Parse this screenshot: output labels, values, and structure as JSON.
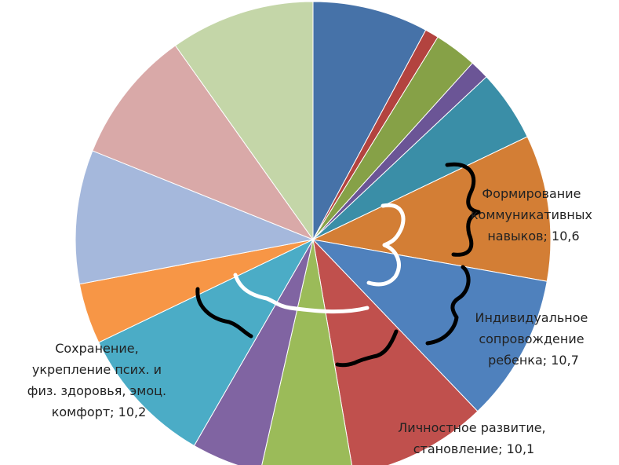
{
  "chart_data": {
    "type": "pie",
    "title": "",
    "slices": [
      {
        "value": 8.4,
        "color": "#4672a8"
      },
      {
        "value": 1.0,
        "color": "#b3433f"
      },
      {
        "value": 3.1,
        "color": "#86a147"
      },
      {
        "value": 1.4,
        "color": "#6b5596"
      },
      {
        "value": 5.2,
        "color": "#3a8ea7"
      },
      {
        "value": 10.6,
        "color": "#d37e35",
        "label": [
          "Формирование",
          "коммуникативных",
          "навыков; 10,6"
        ]
      },
      {
        "value": 10.7,
        "color": "#4f81bd",
        "label": [
          "Индивидуальное",
          "сопровождение",
          "ребенка; 10,7"
        ]
      },
      {
        "value": 10.1,
        "color": "#c0504d",
        "label": [
          "Личностное развитие,",
          "становление; 10,1"
        ]
      },
      {
        "value": 6.7,
        "color": "#9bbb59"
      },
      {
        "value": 5.1,
        "color": "#8064a2"
      },
      {
        "value": 10.2,
        "color": "#4bacc6",
        "label": [
          "Сохранение,",
          "укрепление  псих. и",
          "физ. здоровья, эмоц.",
          "комфорт; 10,2"
        ]
      },
      {
        "value": 4.4,
        "color": "#f79646"
      },
      {
        "value": 9.7,
        "color": "#a5b8dc"
      },
      {
        "value": 9.7,
        "color": "#d9a9a8"
      },
      {
        "value": 10.5,
        "color": "#c4d6a8"
      }
    ]
  }
}
